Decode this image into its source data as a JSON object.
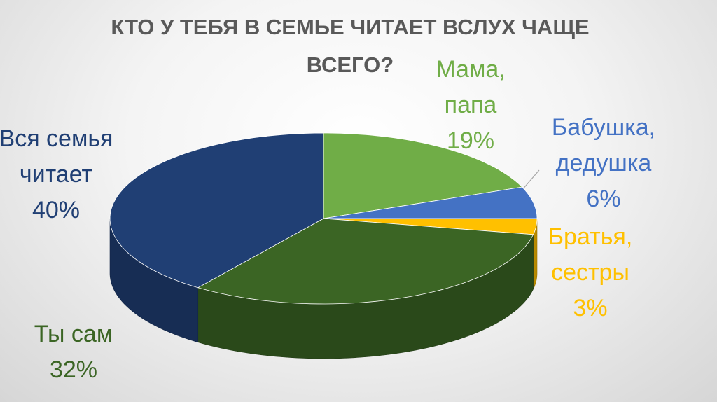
{
  "chart_data": {
    "type": "pie3d",
    "title": "КТО У ТЕБЯ В СЕМЬЕ ЧИТАЕТ ВСЛУХ ЧАЩЕ ВСЕГО?",
    "categories": [
      "Мама, папа",
      "Бабушка, дедушка",
      "Братья, сестры",
      "Ты сам",
      "Вся семья читает"
    ],
    "values": [
      19,
      6,
      3,
      32,
      40
    ],
    "value_labels": [
      "19%",
      "6%",
      "3%",
      "32%",
      "40%"
    ],
    "colors": [
      "#70ad47",
      "#4472c4",
      "#ffc000",
      "#3b6524",
      "#203f74"
    ]
  }
}
